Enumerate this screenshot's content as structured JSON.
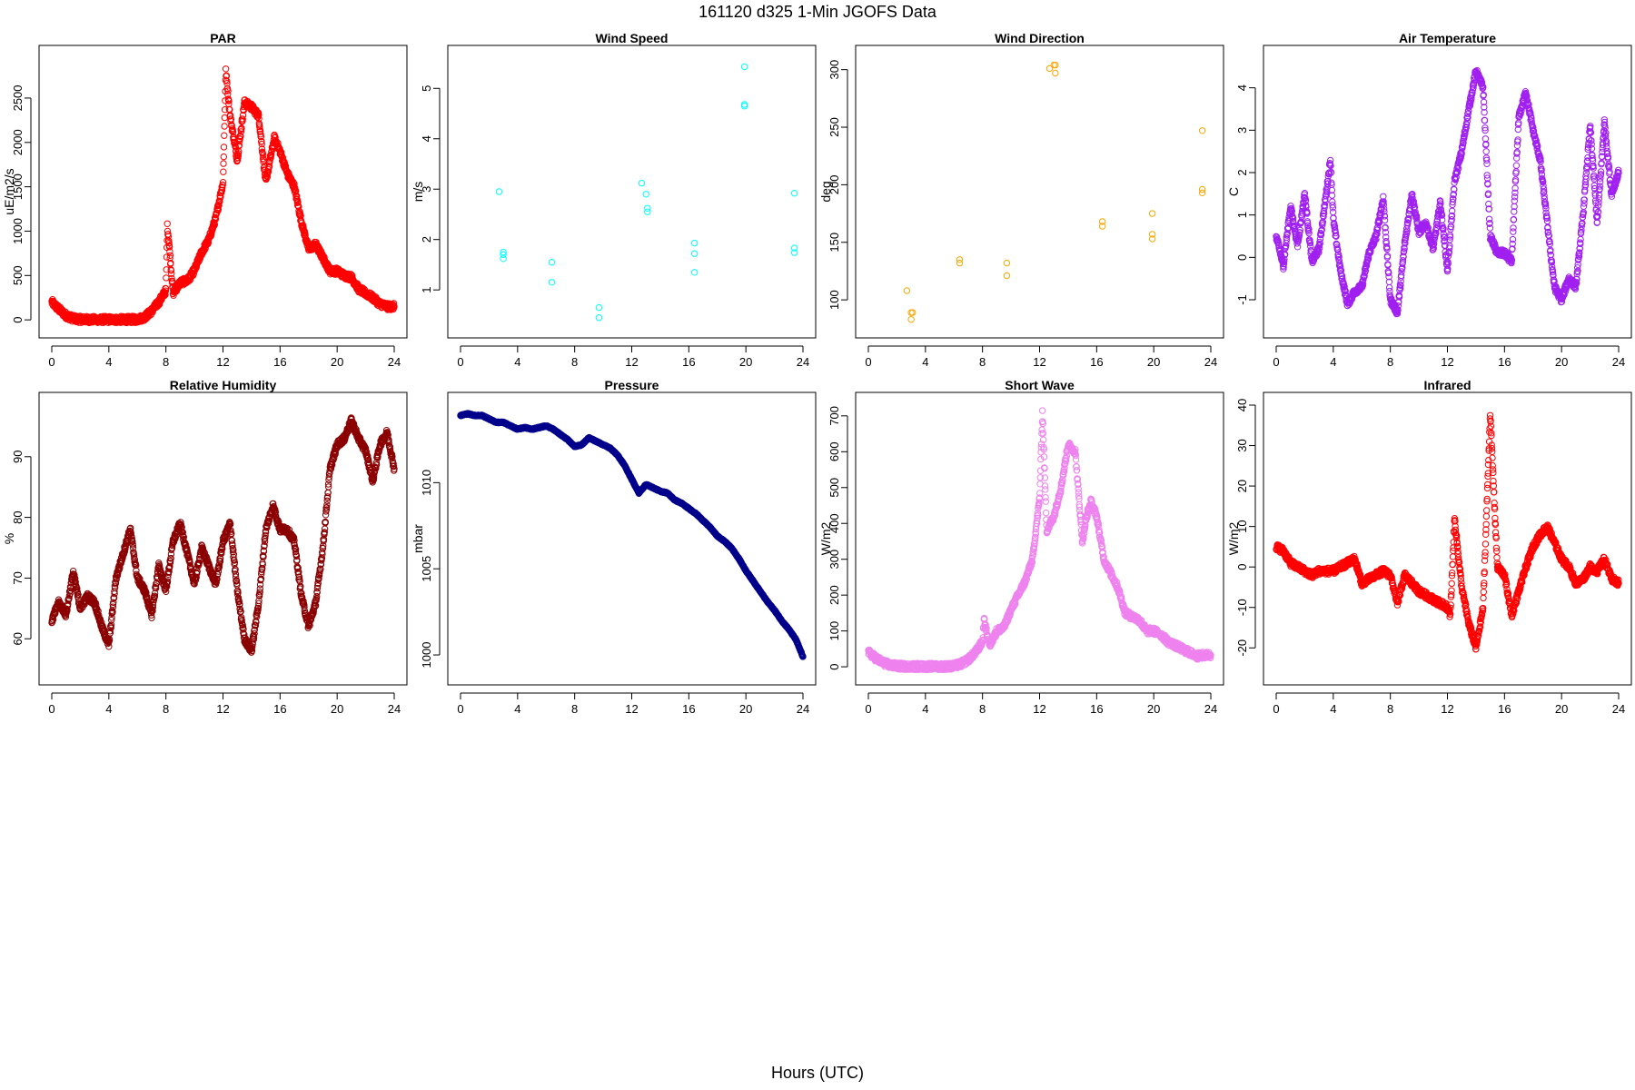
{
  "figure": {
    "title": "161120   d325   1-Min  JGOFS Data",
    "xlabel": "Hours (UTC)"
  },
  "chart_data": [
    {
      "type": "scatter",
      "title": "PAR",
      "ylabel": "uE/m2/s",
      "color": "#ff0000",
      "xlim": [
        0,
        24
      ],
      "ylim": [
        -60,
        2950
      ],
      "xticks": [
        0,
        4,
        8,
        12,
        16,
        20,
        24
      ],
      "yticks": [
        0,
        500,
        1000,
        1500,
        2000,
        2500
      ],
      "marker": "open-circle",
      "density": "dense",
      "x": [
        0,
        0.5,
        1,
        1.5,
        2,
        3,
        4,
        5,
        6,
        6.5,
        7,
        7.5,
        8,
        8.1,
        8.2,
        8.5,
        9,
        9.5,
        10,
        10.5,
        11,
        11.5,
        12,
        12.2,
        12.5,
        13,
        13.5,
        14,
        14.5,
        15,
        15.3,
        15.6,
        16,
        16.5,
        17,
        17.5,
        18,
        18.5,
        19,
        19.5,
        20,
        20.5,
        21,
        21.5,
        22,
        22.5,
        23,
        23.5,
        24
      ],
      "y": [
        200,
        120,
        50,
        15,
        5,
        3,
        3,
        3,
        5,
        30,
        100,
        200,
        330,
        1050,
        900,
        300,
        420,
        440,
        560,
        760,
        900,
        1150,
        1550,
        2800,
        2300,
        1800,
        2450,
        2400,
        2300,
        1550,
        1800,
        2050,
        1900,
        1650,
        1500,
        1100,
        800,
        850,
        700,
        550,
        550,
        500,
        480,
        350,
        300,
        250,
        180,
        150,
        150
      ]
    },
    {
      "type": "scatter",
      "title": "Wind Speed",
      "ylabel": "m/s",
      "color": "#00ffff",
      "xlim": [
        0,
        24
      ],
      "ylim": [
        0.3,
        5.6
      ],
      "xticks": [
        0,
        4,
        8,
        12,
        16,
        20,
        24
      ],
      "yticks": [
        1,
        2,
        3,
        4,
        5
      ],
      "marker": "open-circle",
      "density": "sparse",
      "x": [
        2.7,
        3,
        3,
        3,
        6.4,
        6.4,
        9.7,
        9.7,
        12.7,
        13,
        13.1,
        13.1,
        16.4,
        16.4,
        16.4,
        19.9,
        19.9,
        19.9,
        23.4,
        23.4,
        23.4
      ],
      "y": [
        2.95,
        1.75,
        1.7,
        1.62,
        1.55,
        1.15,
        0.65,
        0.45,
        3.12,
        2.9,
        2.62,
        2.55,
        1.93,
        1.72,
        1.35,
        5.43,
        4.68,
        4.65,
        2.92,
        1.83,
        1.74
      ]
    },
    {
      "type": "scatter",
      "title": "Wind Direction",
      "ylabel": "deg",
      "color": "#ffa500",
      "xlim": [
        0,
        24
      ],
      "ylim": [
        78,
        310
      ],
      "xticks": [
        0,
        4,
        8,
        12,
        16,
        20,
        24
      ],
      "yticks": [
        100,
        150,
        200,
        250,
        300
      ],
      "marker": "open-circle",
      "density": "sparse",
      "x": [
        2.7,
        3,
        3.1,
        3,
        6.4,
        6.4,
        9.7,
        9.7,
        12.7,
        13,
        13.1,
        13.1,
        16.4,
        16.4,
        19.9,
        19.9,
        19.9,
        23.4,
        23.4,
        23.4
      ],
      "y": [
        108,
        89,
        89,
        83,
        135,
        132,
        132,
        121,
        301,
        304,
        304,
        297,
        168,
        164,
        175,
        157,
        153,
        247,
        196,
        193
      ]
    },
    {
      "type": "scatter",
      "title": "Air Temperature",
      "ylabel": "C",
      "color": "#a020f0",
      "xlim": [
        0,
        24
      ],
      "ylim": [
        -1.6,
        4.7
      ],
      "xticks": [
        0,
        4,
        8,
        12,
        16,
        20,
        24
      ],
      "yticks": [
        -1,
        0,
        1,
        2,
        3,
        4
      ],
      "marker": "open-circle",
      "density": "dense",
      "x": [
        0,
        0.5,
        1,
        1.5,
        2,
        2.5,
        3,
        3.5,
        3.8,
        4,
        4.5,
        5,
        5.5,
        6,
        6.5,
        7,
        7.5,
        8,
        8.5,
        9,
        9.5,
        10,
        10.5,
        11,
        11.5,
        12,
        12.5,
        13,
        13.5,
        14,
        14.5,
        15,
        15.5,
        16,
        16.5,
        17,
        17.5,
        18,
        18.5,
        19,
        19.5,
        20,
        20.5,
        21,
        21.5,
        22,
        22.5,
        23,
        23.5,
        24
      ],
      "y": [
        0.5,
        -0.2,
        1.2,
        0.3,
        1.5,
        -0.1,
        0.2,
        1.5,
        2.3,
        0.9,
        -0.3,
        -1.1,
        -0.8,
        -0.7,
        0.1,
        0.5,
        1.4,
        -1,
        -1.3,
        0.3,
        1.5,
        0.6,
        0.8,
        0.2,
        1.3,
        -0.3,
        1.8,
        2.5,
        3.5,
        4.4,
        4,
        0.5,
        0.1,
        0.1,
        -0.1,
        3.3,
        3.9,
        3,
        2.3,
        0.8,
        -0.7,
        -1,
        -0.5,
        -0.7,
        1,
        3.1,
        0.8,
        3.2,
        1.5,
        2
      ]
    },
    {
      "type": "scatter",
      "title": "Relative Humidity",
      "ylabel": "%",
      "color": "#8b0000",
      "xlim": [
        0,
        24
      ],
      "ylim": [
        54.5,
        98.5
      ],
      "xticks": [
        0,
        4,
        8,
        12,
        16,
        20,
        24
      ],
      "yticks": [
        60,
        70,
        80,
        90
      ],
      "marker": "open-circle",
      "density": "dense",
      "x": [
        0,
        0.5,
        1,
        1.5,
        2,
        2.5,
        3,
        3.5,
        4,
        4.5,
        5,
        5.5,
        6,
        6.5,
        7,
        7.5,
        8,
        8.5,
        9,
        9.5,
        10,
        10.5,
        11,
        11.5,
        12,
        12.5,
        13,
        13.5,
        14,
        14.5,
        15,
        15.5,
        16,
        16.5,
        17,
        17.5,
        18,
        18.5,
        19,
        19.5,
        20,
        20.5,
        21,
        21.5,
        22,
        22.5,
        23,
        23.5,
        24
      ],
      "y": [
        63,
        66,
        64,
        71,
        65,
        67,
        66,
        62,
        59,
        70,
        74,
        78,
        70,
        68,
        64,
        72,
        68,
        76,
        79,
        74,
        69,
        75,
        72,
        69,
        76,
        79,
        68,
        60,
        58,
        66,
        78,
        82,
        78,
        78,
        76,
        67,
        62,
        66,
        75,
        88,
        92,
        93,
        96,
        93,
        91,
        86,
        92,
        94,
        88
      ]
    },
    {
      "type": "line",
      "title": "Pressure",
      "ylabel": "mbar",
      "color": "#00008b",
      "xlim": [
        0,
        24
      ],
      "ylim": [
        999,
        1014.5
      ],
      "xticks": [
        0,
        4,
        8,
        12,
        16,
        20,
        24
      ],
      "yticks": [
        1000,
        1005,
        1010
      ],
      "marker": "open-circle",
      "density": "dense",
      "x": [
        0,
        0.5,
        1,
        1.5,
        2,
        2.5,
        3,
        3.5,
        4,
        4.5,
        5,
        5.5,
        6,
        6.5,
        7,
        7.5,
        8,
        8.5,
        9,
        9.5,
        10,
        10.5,
        11,
        11.5,
        12,
        12.5,
        13,
        13.5,
        14,
        14.5,
        15,
        15.5,
        16,
        16.5,
        17,
        17.5,
        18,
        18.5,
        19,
        19.5,
        20,
        20.5,
        21,
        21.5,
        22,
        22.5,
        23,
        23.5,
        24
      ],
      "y": [
        1013.9,
        1014,
        1013.9,
        1013.9,
        1013.7,
        1013.5,
        1013.5,
        1013.3,
        1013.1,
        1013.2,
        1013.1,
        1013.2,
        1013.3,
        1013.1,
        1012.8,
        1012.5,
        1012.1,
        1012.2,
        1012.6,
        1012.4,
        1012.2,
        1012,
        1011.6,
        1011,
        1010.2,
        1009.4,
        1009.9,
        1009.7,
        1009.5,
        1009.4,
        1009.0,
        1008.8,
        1008.5,
        1008.2,
        1007.8,
        1007.4,
        1006.9,
        1006.6,
        1006.2,
        1005.6,
        1004.9,
        1004.3,
        1003.7,
        1003.1,
        1002.6,
        1002.0,
        1001.5,
        1000.9,
        999.9
      ]
    },
    {
      "type": "scatter",
      "title": "Short Wave",
      "ylabel": "W/m2",
      "color": "#ee82ee",
      "xlim": [
        0,
        24
      ],
      "ylim": [
        -15,
        730
      ],
      "xticks": [
        0,
        4,
        8,
        12,
        16,
        20,
        24
      ],
      "yticks": [
        0,
        100,
        200,
        300,
        400,
        500,
        600,
        700
      ],
      "marker": "open-circle",
      "density": "dense",
      "x": [
        0,
        0.5,
        1,
        1.5,
        2,
        3,
        4,
        5,
        6,
        6.5,
        7,
        7.5,
        8,
        8.1,
        8.5,
        9,
        9.5,
        10,
        10.5,
        11,
        11.5,
        12,
        12.2,
        12.5,
        13,
        13.5,
        14,
        14.5,
        15,
        15.3,
        15.6,
        16,
        16.5,
        17,
        17.5,
        18,
        18.5,
        19,
        19.5,
        20,
        20.5,
        21,
        21.5,
        22,
        22.5,
        23,
        23.5,
        24
      ],
      "y": [
        40,
        25,
        12,
        5,
        2,
        1,
        1,
        1,
        2,
        8,
        20,
        40,
        70,
        130,
        60,
        100,
        110,
        160,
        200,
        240,
        300,
        470,
        710,
        380,
        420,
        500,
        620,
        600,
        350,
        420,
        460,
        420,
        300,
        260,
        220,
        150,
        140,
        130,
        100,
        100,
        90,
        70,
        60,
        50,
        40,
        30,
        32,
        33
      ]
    },
    {
      "type": "scatter",
      "title": "Infrared",
      "ylabel": "W/m2",
      "color": "#ff0000",
      "xlim": [
        0,
        24
      ],
      "ylim": [
        -26,
        40
      ],
      "xticks": [
        0,
        4,
        8,
        12,
        16,
        20,
        24
      ],
      "yticks": [
        -20,
        -10,
        0,
        10,
        20,
        30,
        40
      ],
      "marker": "open-circle",
      "density": "dense",
      "x": [
        0,
        0.5,
        1,
        1.5,
        2,
        2.5,
        3,
        3.5,
        4,
        4.5,
        5,
        5.5,
        6,
        6.5,
        7,
        7.5,
        8,
        8.5,
        9,
        9.5,
        10,
        10.5,
        11,
        11.5,
        12,
        12.2,
        12.5,
        13,
        13.5,
        14,
        14.5,
        15,
        15.5,
        16,
        16.5,
        17,
        17.5,
        18,
        18.5,
        19,
        19.5,
        20,
        20.5,
        21,
        21.5,
        22,
        22.5,
        23,
        23.5,
        24
      ],
      "y": [
        5,
        4,
        1,
        0,
        -1,
        -2,
        -1,
        -1,
        -1,
        0,
        1,
        2,
        -4,
        -3,
        -2,
        -1,
        -2,
        -9,
        -2,
        -4,
        -6,
        -7,
        -8,
        -9,
        -10,
        -12,
        12,
        -5,
        -14,
        -20,
        -10,
        38,
        0,
        -2,
        -12,
        -6,
        0,
        5,
        8,
        10,
        6,
        2,
        0,
        -4,
        -3,
        0,
        -1,
        2,
        -3,
        -4
      ]
    }
  ]
}
